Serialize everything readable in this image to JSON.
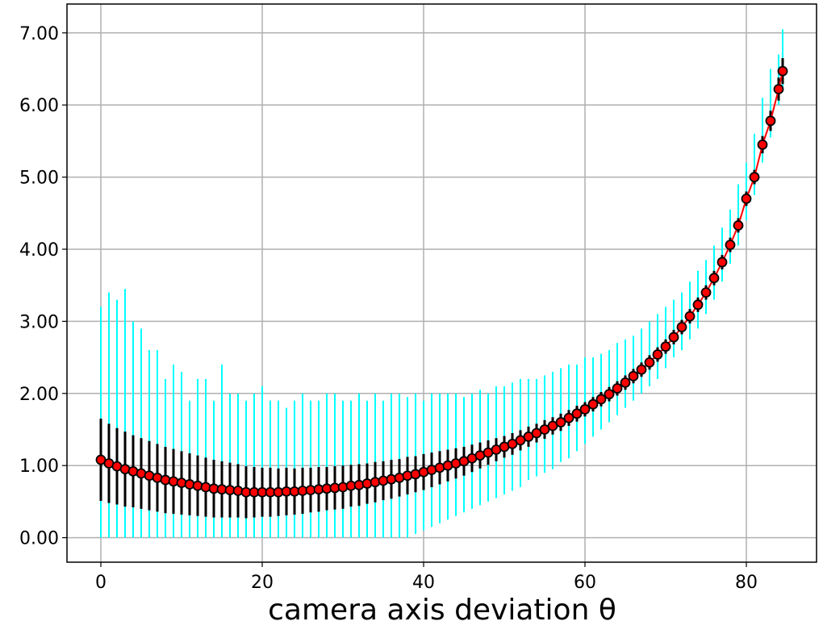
{
  "chart_data": {
    "type": "errorbar",
    "xlabel": "camera axis deviation θ",
    "x": [
      0,
      1,
      2,
      3,
      4,
      5,
      6,
      7,
      8,
      9,
      10,
      11,
      12,
      13,
      14,
      15,
      16,
      17,
      18,
      19,
      20,
      21,
      22,
      23,
      24,
      25,
      26,
      27,
      28,
      29,
      30,
      31,
      32,
      33,
      34,
      35,
      36,
      37,
      38,
      39,
      40,
      41,
      42,
      43,
      44,
      45,
      46,
      47,
      48,
      49,
      50,
      51,
      52,
      53,
      54,
      55,
      56,
      57,
      58,
      59,
      60,
      61,
      62,
      63,
      64,
      65,
      66,
      67,
      68,
      69,
      70,
      71,
      72,
      73,
      74,
      75,
      76,
      77,
      78,
      79,
      80,
      81,
      82,
      83,
      84,
      84.5
    ],
    "values": [
      1.08,
      1.03,
      0.99,
      0.95,
      0.92,
      0.89,
      0.86,
      0.83,
      0.8,
      0.78,
      0.76,
      0.74,
      0.72,
      0.7,
      0.68,
      0.67,
      0.66,
      0.65,
      0.63,
      0.63,
      0.63,
      0.63,
      0.63,
      0.64,
      0.64,
      0.65,
      0.66,
      0.67,
      0.68,
      0.69,
      0.7,
      0.72,
      0.73,
      0.75,
      0.77,
      0.79,
      0.81,
      0.83,
      0.86,
      0.88,
      0.91,
      0.94,
      0.97,
      1.0,
      1.03,
      1.06,
      1.1,
      1.14,
      1.18,
      1.22,
      1.26,
      1.3,
      1.35,
      1.4,
      1.45,
      1.5,
      1.55,
      1.6,
      1.66,
      1.72,
      1.78,
      1.85,
      1.92,
      1.99,
      2.07,
      2.15,
      2.24,
      2.33,
      2.43,
      2.54,
      2.65,
      2.78,
      2.92,
      3.07,
      3.23,
      3.4,
      3.6,
      3.82,
      4.06,
      4.33,
      4.7,
      5.0,
      5.45,
      5.78,
      6.22,
      6.47
    ],
    "err": [
      0.57,
      0.55,
      0.53,
      0.52,
      0.5,
      0.49,
      0.48,
      0.47,
      0.46,
      0.45,
      0.44,
      0.43,
      0.42,
      0.41,
      0.4,
      0.39,
      0.38,
      0.37,
      0.36,
      0.35,
      0.34,
      0.34,
      0.33,
      0.33,
      0.32,
      0.32,
      0.31,
      0.31,
      0.3,
      0.3,
      0.3,
      0.29,
      0.29,
      0.28,
      0.28,
      0.27,
      0.27,
      0.26,
      0.26,
      0.25,
      0.25,
      0.24,
      0.23,
      0.22,
      0.21,
      0.2,
      0.19,
      0.18,
      0.17,
      0.16,
      0.15,
      0.15,
      0.14,
      0.14,
      0.13,
      0.13,
      0.12,
      0.12,
      0.11,
      0.11,
      0.1,
      0.1,
      0.1,
      0.1,
      0.1,
      0.1,
      0.1,
      0.1,
      0.1,
      0.1,
      0.1,
      0.1,
      0.1,
      0.1,
      0.1,
      0.1,
      0.1,
      0.1,
      0.1,
      0.1,
      0.1,
      0.1,
      0.12,
      0.14,
      0.16,
      0.18
    ],
    "min": [
      0,
      0,
      0,
      0,
      0,
      0,
      0,
      0,
      0,
      0,
      0,
      0,
      0,
      0,
      0,
      0,
      0,
      0,
      0,
      0,
      0,
      0,
      0,
      0,
      0,
      0,
      0,
      0,
      0,
      0,
      0,
      0,
      0,
      0,
      0,
      0,
      0,
      0,
      0,
      0.05,
      0.1,
      0.15,
      0.2,
      0.25,
      0.3,
      0.35,
      0.4,
      0.45,
      0.5,
      0.55,
      0.6,
      0.65,
      0.7,
      0.8,
      0.85,
      0.9,
      0.95,
      1.05,
      1.1,
      1.2,
      1.3,
      1.4,
      1.5,
      1.6,
      1.7,
      1.8,
      1.9,
      2.0,
      2.1,
      2.2,
      2.35,
      2.5,
      2.6,
      2.75,
      2.9,
      3.1,
      3.3,
      3.55,
      3.8,
      4.05,
      4.4,
      4.75,
      5.2,
      5.55,
      6.0,
      6.25
    ],
    "max": [
      3.2,
      3.4,
      3.3,
      3.45,
      3.0,
      2.9,
      2.6,
      2.6,
      2.2,
      2.4,
      2.3,
      1.9,
      2.2,
      2.2,
      1.9,
      2.4,
      2.0,
      2.0,
      1.9,
      2.0,
      2.1,
      1.9,
      1.9,
      1.8,
      1.9,
      2.0,
      1.9,
      1.9,
      2.0,
      2.0,
      1.9,
      1.9,
      2.0,
      1.9,
      2.0,
      1.9,
      2.0,
      2.0,
      1.95,
      2.0,
      1.9,
      2.0,
      2.0,
      2.0,
      2.0,
      1.95,
      2.0,
      2.05,
      2.0,
      2.1,
      2.1,
      2.15,
      2.2,
      2.2,
      2.2,
      2.25,
      2.3,
      2.35,
      2.4,
      2.4,
      2.5,
      2.5,
      2.55,
      2.6,
      2.7,
      2.75,
      2.8,
      2.9,
      3.0,
      3.1,
      3.2,
      3.3,
      3.4,
      3.55,
      3.7,
      3.85,
      4.05,
      4.3,
      4.55,
      4.9,
      5.2,
      5.6,
      6.1,
      6.5,
      6.7,
      7.05
    ],
    "color": "#ff0000",
    "err_color": "#000000",
    "range_color": "#00ffff",
    "edge_color": "#000000",
    "xlim": [
      -4.2,
      88.7
    ],
    "ylim": [
      -0.34,
      7.4
    ],
    "xticks": [
      0,
      20,
      40,
      60,
      80
    ],
    "yticks": [
      {
        "value": 0,
        "label": "0.00"
      },
      {
        "value": 1,
        "label": "1.00"
      },
      {
        "value": 2,
        "label": "2.00"
      },
      {
        "value": 3,
        "label": "3.00"
      },
      {
        "value": 4,
        "label": "4.00"
      },
      {
        "value": 5,
        "label": "5.00"
      },
      {
        "value": 6,
        "label": "6.00"
      },
      {
        "value": 7,
        "label": "7.00"
      }
    ],
    "grid": true
  }
}
